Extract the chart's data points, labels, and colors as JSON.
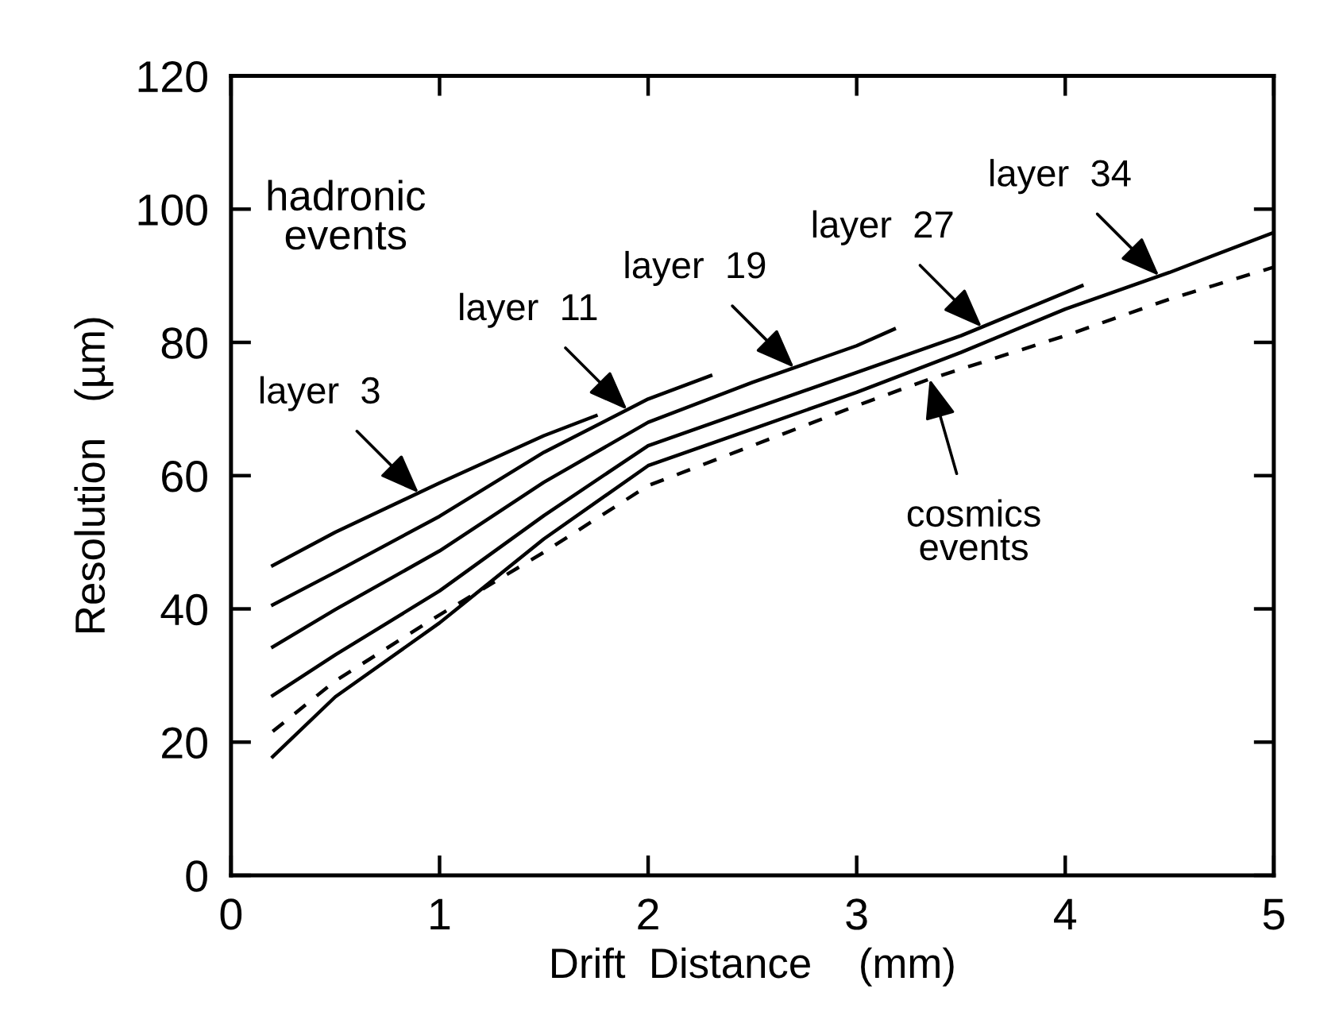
{
  "chart_data": {
    "type": "line",
    "xlabel": "Drift  Distance    (mm)",
    "ylabel": "Resolution   (µm)",
    "xlim": [
      0,
      5
    ],
    "ylim": [
      0,
      120
    ],
    "xticks": [
      0,
      1,
      2,
      3,
      4,
      5
    ],
    "yticks": [
      0,
      20,
      40,
      60,
      80,
      100,
      120
    ],
    "grid": false,
    "legend": false,
    "marker": "none",
    "series": [
      {
        "color": "#000000",
        "x": [
          0.2,
          0.5,
          1,
          1.5,
          1.75
        ],
        "values": [
          46.5,
          51.5,
          58.9,
          66,
          69
        ]
      },
      {
        "color": "#000000",
        "x": [
          0.2,
          0.5,
          1,
          1.5,
          2,
          2.3
        ],
        "values": [
          40.6,
          45.5,
          53.9,
          63.5,
          71.5,
          75
        ]
      },
      {
        "color": "#000000",
        "x": [
          0.2,
          0.5,
          1,
          1.5,
          2,
          2.5,
          3,
          3.18
        ],
        "values": [
          34.3,
          39.9,
          48.7,
          59,
          68,
          74,
          79.5,
          82
        ]
      },
      {
        "color": "#000000",
        "x": [
          0.2,
          0.5,
          1,
          1.5,
          2,
          2.5,
          3,
          3.5,
          4.08
        ],
        "values": [
          27,
          33.1,
          42.7,
          54,
          64.5,
          70,
          75.5,
          81,
          88.5
        ]
      },
      {
        "color": "#000000",
        "x": [
          0.2,
          0.5,
          1,
          1.5,
          2,
          2.5,
          3,
          3.5,
          4,
          4.5,
          5
        ],
        "values": [
          17.8,
          26.8,
          37.9,
          50.5,
          61.5,
          67,
          72.5,
          78.5,
          85,
          90.5,
          96.5
        ]
      },
      {
        "color": "#000000",
        "line_style": "dashed",
        "x": [
          0.2,
          0.5,
          1,
          1.5,
          2,
          2.5,
          3,
          3.35,
          4,
          4.5,
          5
        ],
        "values": [
          21.6,
          29.2,
          39.1,
          48.5,
          58.5,
          64.5,
          70.5,
          74.5,
          81,
          86.5,
          91.3
        ]
      }
    ],
    "annotations": [
      "hadronic\nevents",
      {
        "text": "layer  3",
        "x": 0.9,
        "y": 57.4
      },
      {
        "text": "layer  11",
        "x": 1.9,
        "y": 69.9
      },
      {
        "text": "layer  19",
        "x": 2.7,
        "y": 76.2
      },
      {
        "text": "layer  27",
        "x": 3.6,
        "y": 82.3
      },
      {
        "text": "layer  34",
        "x": 4.45,
        "y": 90
      },
      {
        "text": "cosmics\nevents",
        "x": 3.35,
        "y": 74.5
      }
    ]
  }
}
